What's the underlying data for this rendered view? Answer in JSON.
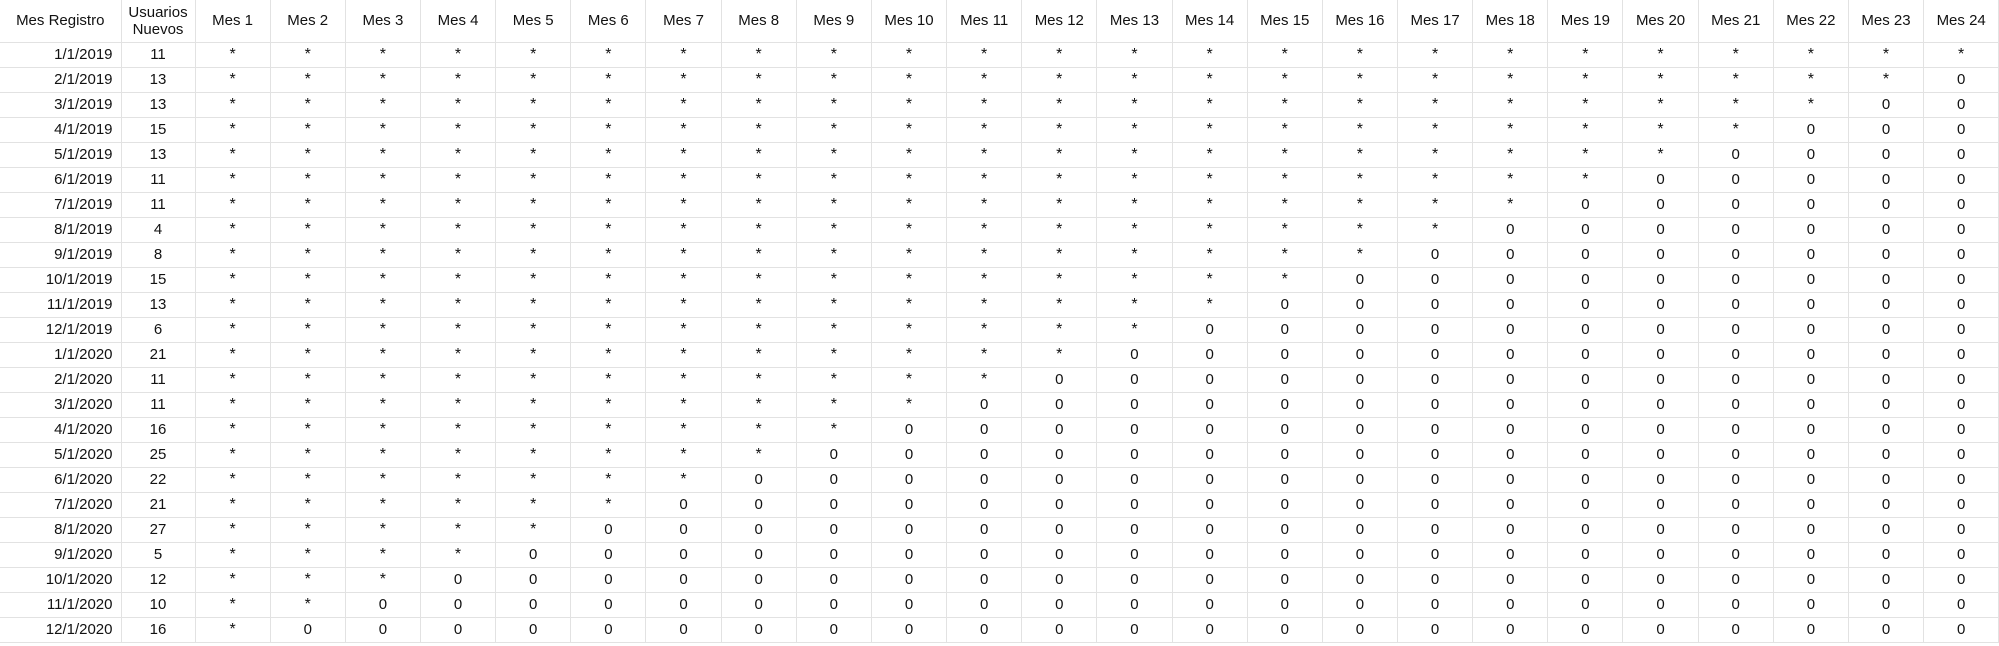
{
  "table": {
    "headers": [
      "Mes Registro",
      "Usuarios Nuevos",
      "Mes 1",
      "Mes 2",
      "Mes 3",
      "Mes 4",
      "Mes 5",
      "Mes 6",
      "Mes 7",
      "Mes 8",
      "Mes 9",
      "Mes 10",
      "Mes 11",
      "Mes 12",
      "Mes 13",
      "Mes 14",
      "Mes 15",
      "Mes 16",
      "Mes 17",
      "Mes 18",
      "Mes 19",
      "Mes 20",
      "Mes 21",
      "Mes 22",
      "Mes 23",
      "Mes 24"
    ],
    "rows": [
      {
        "date": "1/1/2019",
        "users": "11",
        "stars": 24
      },
      {
        "date": "2/1/2019",
        "users": "13",
        "stars": 23
      },
      {
        "date": "3/1/2019",
        "users": "13",
        "stars": 22
      },
      {
        "date": "4/1/2019",
        "users": "15",
        "stars": 21
      },
      {
        "date": "5/1/2019",
        "users": "13",
        "stars": 20
      },
      {
        "date": "6/1/2019",
        "users": "11",
        "stars": 19
      },
      {
        "date": "7/1/2019",
        "users": "11",
        "stars": 18
      },
      {
        "date": "8/1/2019",
        "users": "4",
        "stars": 17
      },
      {
        "date": "9/1/2019",
        "users": "8",
        "stars": 16
      },
      {
        "date": "10/1/2019",
        "users": "15",
        "stars": 15
      },
      {
        "date": "11/1/2019",
        "users": "13",
        "stars": 14
      },
      {
        "date": "12/1/2019",
        "users": "6",
        "stars": 13
      },
      {
        "date": "1/1/2020",
        "users": "21",
        "stars": 12
      },
      {
        "date": "2/1/2020",
        "users": "11",
        "stars": 11
      },
      {
        "date": "3/1/2020",
        "users": "11",
        "stars": 10
      },
      {
        "date": "4/1/2020",
        "users": "16",
        "stars": 9
      },
      {
        "date": "5/1/2020",
        "users": "25",
        "stars": 8
      },
      {
        "date": "6/1/2020",
        "users": "22",
        "stars": 7
      },
      {
        "date": "7/1/2020",
        "users": "21",
        "stars": 6
      },
      {
        "date": "8/1/2020",
        "users": "27",
        "stars": 5
      },
      {
        "date": "9/1/2020",
        "users": "5",
        "stars": 4
      },
      {
        "date": "10/1/2020",
        "users": "12",
        "stars": 3
      },
      {
        "date": "11/1/2020",
        "users": "10",
        "stars": 2
      },
      {
        "date": "12/1/2020",
        "users": "16",
        "stars": 1
      }
    ],
    "star_symbol": "*",
    "zero_symbol": "0"
  }
}
